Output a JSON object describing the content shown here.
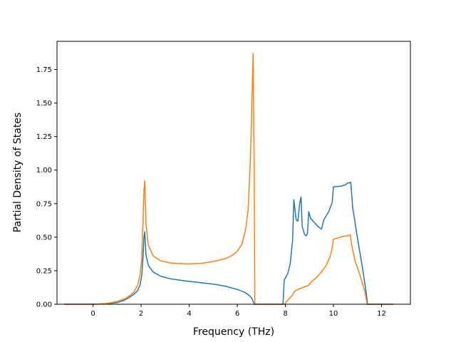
{
  "chart_data": {
    "type": "line",
    "title": "",
    "xlabel": "Frequency (THz)",
    "ylabel": "Partial Density of States",
    "xlim": [
      -1.5,
      13.2
    ],
    "ylim": [
      0,
      1.96
    ],
    "grid": false,
    "legend": "none",
    "x_ticks": [
      0,
      2,
      4,
      6,
      8,
      10,
      12
    ],
    "x_tick_labels": [
      "0",
      "2",
      "4",
      "6",
      "8",
      "10",
      "12"
    ],
    "y_ticks": [
      0,
      0.25,
      0.5,
      0.75,
      1.0,
      1.25,
      1.5,
      1.75
    ],
    "y_tick_labels": [
      "0.00",
      "0.25",
      "0.50",
      "0.75",
      "1.00",
      "1.25",
      "1.50",
      "1.75"
    ],
    "series": [
      {
        "color": "#1f77b4",
        "points": [
          [
            -1.2,
            0
          ],
          [
            0,
            0
          ],
          [
            0.5,
            0.003
          ],
          [
            1.0,
            0.012
          ],
          [
            1.3,
            0.03
          ],
          [
            1.5,
            0.05
          ],
          [
            1.7,
            0.075
          ],
          [
            1.85,
            0.1
          ],
          [
            1.95,
            0.14
          ],
          [
            2.03,
            0.22
          ],
          [
            2.08,
            0.36
          ],
          [
            2.12,
            0.5
          ],
          [
            2.15,
            0.54
          ],
          [
            2.2,
            0.37
          ],
          [
            2.3,
            0.29
          ],
          [
            2.5,
            0.24
          ],
          [
            2.8,
            0.21
          ],
          [
            3.2,
            0.19
          ],
          [
            3.8,
            0.175
          ],
          [
            4.5,
            0.16
          ],
          [
            5.0,
            0.15
          ],
          [
            5.5,
            0.135
          ],
          [
            6.0,
            0.11
          ],
          [
            6.3,
            0.09
          ],
          [
            6.5,
            0.065
          ],
          [
            6.62,
            0.04
          ],
          [
            6.7,
            0
          ],
          [
            7.9,
            0
          ],
          [
            7.95,
            0.18
          ],
          [
            8.1,
            0.23
          ],
          [
            8.2,
            0.3
          ],
          [
            8.3,
            0.48
          ],
          [
            8.35,
            0.78
          ],
          [
            8.45,
            0.63
          ],
          [
            8.52,
            0.62
          ],
          [
            8.6,
            0.76
          ],
          [
            8.65,
            0.8
          ],
          [
            8.7,
            0.58
          ],
          [
            8.8,
            0.52
          ],
          [
            8.87,
            0.51
          ],
          [
            8.92,
            0.53
          ],
          [
            8.97,
            0.69
          ],
          [
            9.05,
            0.64
          ],
          [
            9.2,
            0.61
          ],
          [
            9.35,
            0.58
          ],
          [
            9.5,
            0.56
          ],
          [
            9.6,
            0.63
          ],
          [
            9.8,
            0.69
          ],
          [
            9.95,
            0.76
          ],
          [
            10.0,
            0.875
          ],
          [
            10.3,
            0.88
          ],
          [
            10.5,
            0.89
          ],
          [
            10.6,
            0.905
          ],
          [
            10.68,
            0.905
          ],
          [
            10.72,
            0.91
          ],
          [
            10.8,
            0.72
          ],
          [
            11.0,
            0.49
          ],
          [
            11.2,
            0.28
          ],
          [
            11.35,
            0.1
          ],
          [
            11.42,
            0
          ],
          [
            12.5,
            0
          ]
        ]
      },
      {
        "color": "#ff7f0e",
        "points": [
          [
            -1.2,
            0
          ],
          [
            0,
            0
          ],
          [
            0.5,
            0.004
          ],
          [
            1.0,
            0.02
          ],
          [
            1.3,
            0.04
          ],
          [
            1.5,
            0.06
          ],
          [
            1.7,
            0.09
          ],
          [
            1.85,
            0.14
          ],
          [
            1.95,
            0.21
          ],
          [
            2.02,
            0.33
          ],
          [
            2.07,
            0.58
          ],
          [
            2.12,
            0.85
          ],
          [
            2.15,
            0.92
          ],
          [
            2.2,
            0.6
          ],
          [
            2.3,
            0.44
          ],
          [
            2.5,
            0.36
          ],
          [
            2.8,
            0.325
          ],
          [
            3.2,
            0.308
          ],
          [
            3.6,
            0.302
          ],
          [
            4.0,
            0.3
          ],
          [
            4.5,
            0.305
          ],
          [
            5.0,
            0.318
          ],
          [
            5.5,
            0.34
          ],
          [
            5.8,
            0.365
          ],
          [
            6.0,
            0.395
          ],
          [
            6.2,
            0.45
          ],
          [
            6.35,
            0.56
          ],
          [
            6.45,
            0.7
          ],
          [
            6.55,
            1.1
          ],
          [
            6.62,
            1.6
          ],
          [
            6.66,
            1.87
          ],
          [
            6.7,
            1.0
          ],
          [
            6.73,
            0
          ],
          [
            7.95,
            0
          ],
          [
            8.1,
            0.03
          ],
          [
            8.3,
            0.07
          ],
          [
            8.4,
            0.1
          ],
          [
            8.6,
            0.115
          ],
          [
            8.8,
            0.13
          ],
          [
            8.95,
            0.14
          ],
          [
            9.1,
            0.17
          ],
          [
            9.3,
            0.2
          ],
          [
            9.5,
            0.24
          ],
          [
            9.7,
            0.29
          ],
          [
            9.85,
            0.35
          ],
          [
            9.95,
            0.42
          ],
          [
            10.0,
            0.485
          ],
          [
            10.2,
            0.495
          ],
          [
            10.4,
            0.505
          ],
          [
            10.55,
            0.51
          ],
          [
            10.7,
            0.515
          ],
          [
            10.75,
            0.45
          ],
          [
            10.9,
            0.32
          ],
          [
            11.1,
            0.22
          ],
          [
            11.3,
            0.1
          ],
          [
            11.4,
            0
          ],
          [
            12.5,
            0
          ]
        ]
      }
    ]
  }
}
